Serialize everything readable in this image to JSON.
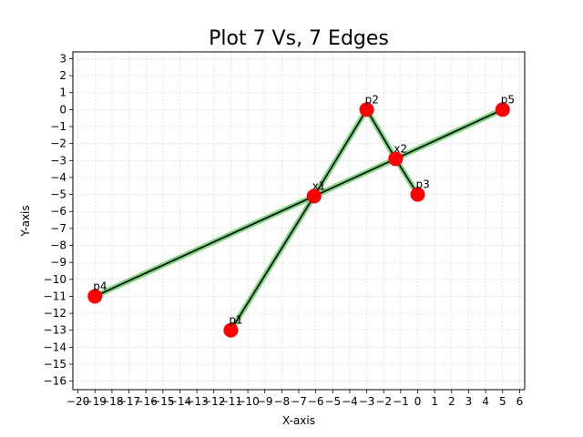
{
  "chart_data": {
    "type": "scatter",
    "title": "Plot 7 Vs, 7 Edges",
    "xlabel": "X-axis",
    "ylabel": "Y-axis",
    "xlim": [
      -20.3,
      6.3
    ],
    "ylim": [
      -16.5,
      3.4
    ],
    "xticks": [
      -20,
      -19,
      -18,
      -17,
      -16,
      -15,
      -14,
      -13,
      -12,
      -11,
      -10,
      -9,
      -8,
      -7,
      -6,
      -5,
      -4,
      -3,
      -2,
      -1,
      0,
      1,
      2,
      3,
      4,
      5,
      6
    ],
    "yticks": [
      3,
      2,
      1,
      0,
      -1,
      -2,
      -3,
      -4,
      -5,
      -6,
      -7,
      -8,
      -9,
      -10,
      -11,
      -12,
      -13,
      -14,
      -15,
      -16
    ],
    "grid": true,
    "colors": {
      "point": "#ff0000",
      "edge": "#000000",
      "edge_highlight": "#7fd47f",
      "grid": "#d3d3d3"
    },
    "points": [
      {
        "label": "p1",
        "x": -11,
        "y": -13
      },
      {
        "label": "p2",
        "x": -3,
        "y": 0
      },
      {
        "label": "p3",
        "x": 0,
        "y": -5
      },
      {
        "label": "p4",
        "x": -19,
        "y": -11
      },
      {
        "label": "p5",
        "x": 5,
        "y": 0
      },
      {
        "label": "x1",
        "x": -6.1,
        "y": -5.1
      },
      {
        "label": "x2",
        "x": -1.3,
        "y": -2.9
      }
    ],
    "edges": [
      [
        "p1",
        "x1"
      ],
      [
        "x1",
        "p2"
      ],
      [
        "p2",
        "x2"
      ],
      [
        "x2",
        "p3"
      ],
      [
        "p4",
        "x1"
      ],
      [
        "x1",
        "x2"
      ],
      [
        "x2",
        "p5"
      ]
    ]
  }
}
